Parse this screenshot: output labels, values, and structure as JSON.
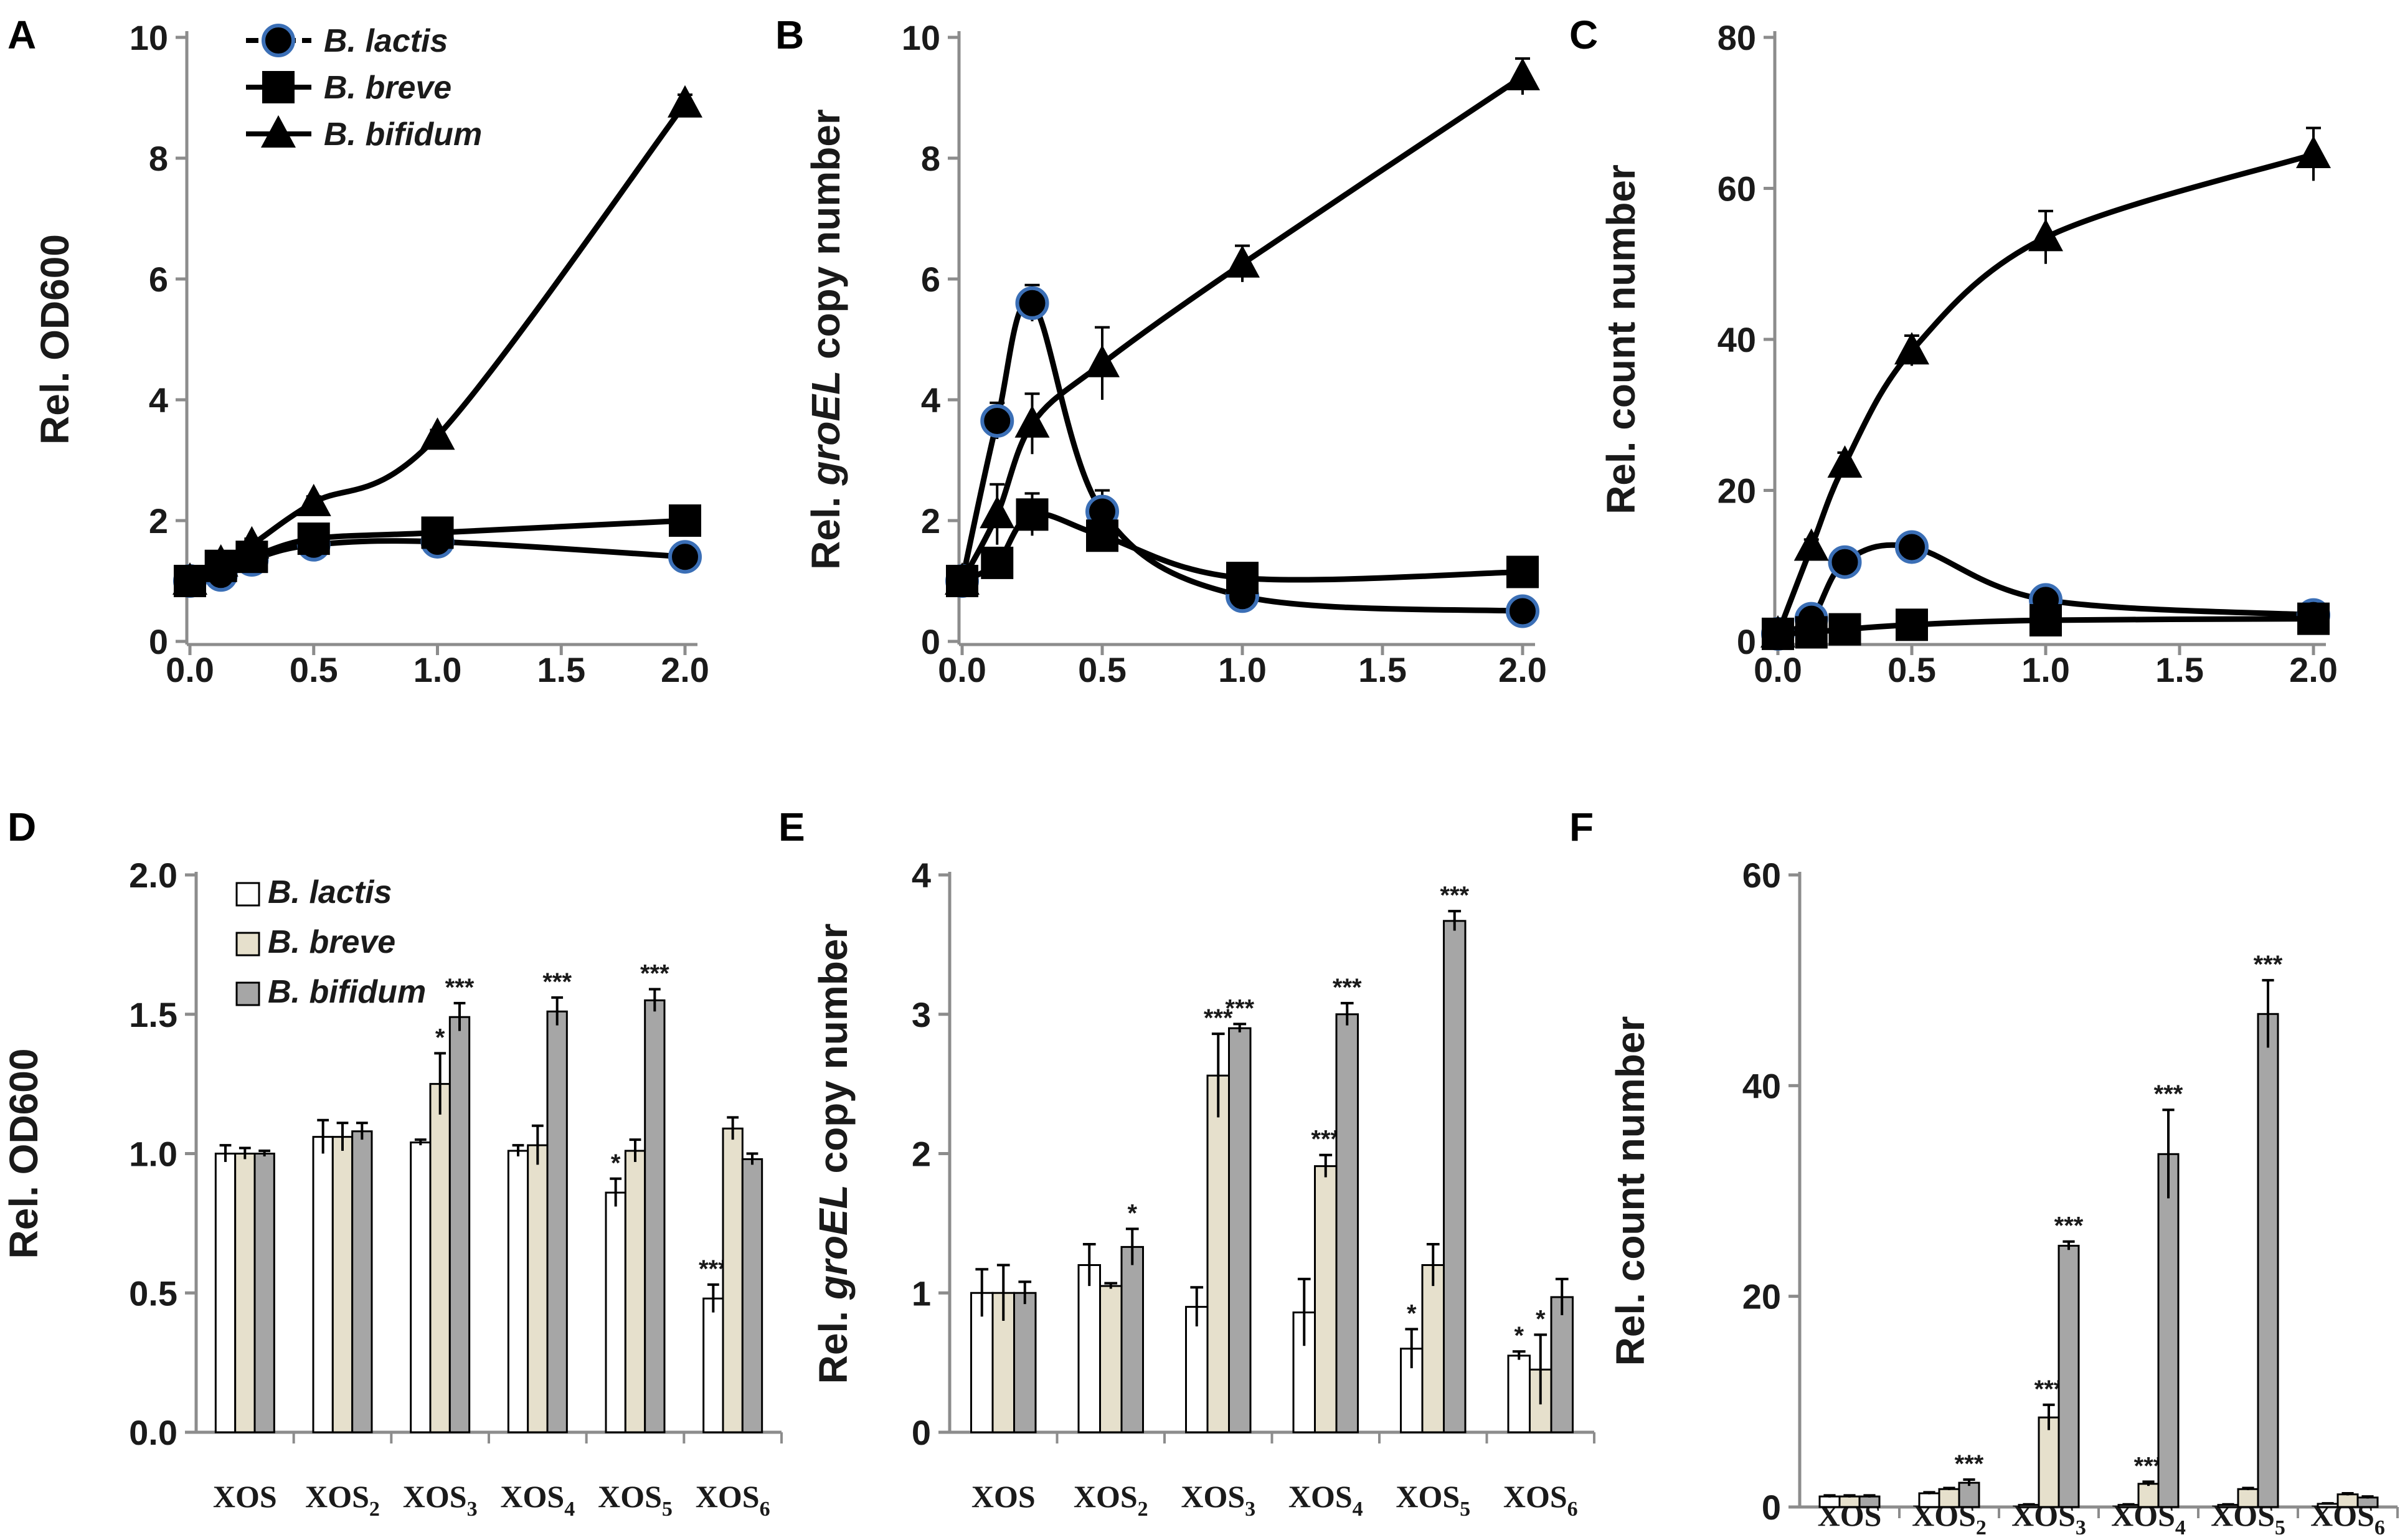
{
  "colors": {
    "axis": "#8c8c8c",
    "line": "#000000",
    "marker_fill": "#000000",
    "circle_stroke": "#3b6fb6",
    "bar_lactis": "#ffffff",
    "bar_breve": "#e6e0cc",
    "bar_bifidum": "#a6a6a6"
  },
  "legend_top": [
    {
      "label": "B. lactis",
      "marker": "circle"
    },
    {
      "label": "B. breve",
      "marker": "square"
    },
    {
      "label": "B. bifidum",
      "marker": "triangle"
    }
  ],
  "legend_bottom": [
    {
      "label": "B. lactis",
      "fill": "bar_lactis"
    },
    {
      "label": "B. breve",
      "fill": "bar_breve"
    },
    {
      "label": "B. bifidum",
      "fill": "bar_bifidum"
    }
  ],
  "chart_data": [
    {
      "panel": "A",
      "type": "line",
      "title": "",
      "xlabel": "",
      "ylabel": "Rel. OD600",
      "xlim": [
        0,
        2.0
      ],
      "ylim": [
        0,
        10
      ],
      "xticks": [
        "0.0",
        "0.5",
        "1.0",
        "1.5",
        "2.0"
      ],
      "yticks": [
        "0",
        "2",
        "4",
        "6",
        "8",
        "10"
      ],
      "x": [
        0,
        0.125,
        0.25,
        0.5,
        1.0,
        2.0
      ],
      "series": [
        {
          "name": "B. lactis",
          "marker": "circle",
          "values": [
            1.0,
            1.1,
            1.35,
            1.6,
            1.65,
            1.4
          ],
          "errors": [
            0.05,
            0.05,
            0.05,
            0.05,
            0.05,
            0.05
          ]
        },
        {
          "name": "B. breve",
          "marker": "square",
          "values": [
            1.0,
            1.25,
            1.4,
            1.7,
            1.8,
            2.0
          ],
          "errors": [
            0.05,
            0.05,
            0.05,
            0.05,
            0.05,
            0.05
          ]
        },
        {
          "name": "B. bifidum",
          "marker": "triangle",
          "values": [
            1.0,
            1.3,
            1.6,
            2.3,
            3.4,
            8.9
          ],
          "errors": [
            0.05,
            0.05,
            0.1,
            0.1,
            0.1,
            0.15
          ]
        }
      ]
    },
    {
      "panel": "B",
      "type": "line",
      "title": "",
      "xlabel": "",
      "ylabel": "Rel. groEL copy number",
      "ylabel_parts": [
        "Rel. ",
        "groEL",
        " copy number"
      ],
      "xlim": [
        0,
        2.0
      ],
      "ylim": [
        0,
        10
      ],
      "xticks": [
        "0.0",
        "0.5",
        "1.0",
        "1.5",
        "2.0"
      ],
      "yticks": [
        "0",
        "2",
        "4",
        "6",
        "8",
        "10"
      ],
      "x": [
        0,
        0.125,
        0.25,
        0.5,
        1.0,
        2.0
      ],
      "series": [
        {
          "name": "B. lactis",
          "marker": "circle",
          "values": [
            1.0,
            3.65,
            5.6,
            2.15,
            0.75,
            0.5
          ],
          "errors": [
            0.05,
            0.3,
            0.3,
            0.35,
            0.2,
            0.05
          ]
        },
        {
          "name": "B. breve",
          "marker": "square",
          "values": [
            1.0,
            1.3,
            2.1,
            1.75,
            1.05,
            1.15
          ],
          "errors": [
            0.05,
            0.2,
            0.35,
            0.2,
            0.1,
            0.1
          ]
        },
        {
          "name": "B. bifidum",
          "marker": "triangle",
          "values": [
            1.0,
            2.1,
            3.6,
            4.6,
            6.25,
            9.35
          ],
          "errors": [
            0.05,
            0.5,
            0.5,
            0.6,
            0.3,
            0.3
          ]
        }
      ]
    },
    {
      "panel": "C",
      "type": "line",
      "title": "",
      "xlabel": "",
      "ylabel": "Rel. count number",
      "xlim": [
        0,
        2.0
      ],
      "ylim": [
        0,
        80
      ],
      "xticks": [
        "0.0",
        "0.5",
        "1.0",
        "1.5",
        "2.0"
      ],
      "yticks": [
        "0",
        "20",
        "40",
        "60",
        "80"
      ],
      "x": [
        0,
        0.125,
        0.25,
        0.5,
        1.0,
        2.0
      ],
      "series": [
        {
          "name": "B. lactis",
          "marker": "circle",
          "values": [
            1.0,
            3.0,
            10.5,
            12.5,
            5.5,
            3.5
          ],
          "errors": [
            0.2,
            0.5,
            0.8,
            0.8,
            0.6,
            0.4
          ]
        },
        {
          "name": "B. breve",
          "marker": "square",
          "values": [
            1.0,
            1.2,
            1.6,
            2.2,
            2.8,
            3.0
          ],
          "errors": [
            0.1,
            0.1,
            0.2,
            0.2,
            0.2,
            0.2
          ]
        },
        {
          "name": "B. bifidum",
          "marker": "triangle",
          "values": [
            1.0,
            12.5,
            23.5,
            38.5,
            53.5,
            64.5
          ],
          "errors": [
            0.2,
            1.0,
            1.5,
            2.0,
            3.5,
            3.5
          ]
        }
      ]
    },
    {
      "panel": "D",
      "type": "bar",
      "title": "",
      "xlabel": "",
      "ylabel": "Rel. OD600",
      "ylim": [
        0,
        2.0
      ],
      "yticks": [
        "0.0",
        "0.5",
        "1.0",
        "1.5",
        "2.0"
      ],
      "categories": [
        {
          "base": "XOS",
          "sub": ""
        },
        {
          "base": "XOS",
          "sub": "2"
        },
        {
          "base": "XOS",
          "sub": "3"
        },
        {
          "base": "XOS",
          "sub": "4"
        },
        {
          "base": "XOS",
          "sub": "5"
        },
        {
          "base": "XOS",
          "sub": "6"
        }
      ],
      "series": [
        {
          "name": "B. lactis",
          "fill": "bar_lactis",
          "values": [
            1.0,
            1.06,
            1.04,
            1.01,
            0.86,
            0.48
          ],
          "errors": [
            0.03,
            0.06,
            0.01,
            0.02,
            0.05,
            0.05
          ],
          "sig": [
            "",
            "",
            "",
            "",
            "*",
            "***"
          ]
        },
        {
          "name": "B. breve",
          "fill": "bar_breve",
          "values": [
            1.0,
            1.06,
            1.25,
            1.03,
            1.01,
            1.09
          ],
          "errors": [
            0.02,
            0.05,
            0.11,
            0.07,
            0.04,
            0.04
          ],
          "sig": [
            "",
            "",
            "*",
            "",
            "",
            ""
          ]
        },
        {
          "name": "B. bifidum",
          "fill": "bar_bifidum",
          "values": [
            1.0,
            1.08,
            1.49,
            1.51,
            1.55,
            0.98
          ],
          "errors": [
            0.01,
            0.03,
            0.05,
            0.05,
            0.04,
            0.02
          ],
          "sig": [
            "",
            "",
            "***",
            "***",
            "***",
            ""
          ]
        }
      ]
    },
    {
      "panel": "E",
      "type": "bar",
      "title": "",
      "xlabel": "",
      "ylabel": "Rel. groEL copy number",
      "ylabel_parts": [
        "Rel. ",
        "groEL",
        " copy number"
      ],
      "ylim": [
        0,
        4
      ],
      "yticks": [
        "0",
        "1",
        "2",
        "3",
        "4"
      ],
      "categories": [
        {
          "base": "XOS",
          "sub": ""
        },
        {
          "base": "XOS",
          "sub": "2"
        },
        {
          "base": "XOS",
          "sub": "3"
        },
        {
          "base": "XOS",
          "sub": "4"
        },
        {
          "base": "XOS",
          "sub": "5"
        },
        {
          "base": "XOS",
          "sub": "6"
        }
      ],
      "series": [
        {
          "name": "B. lactis",
          "fill": "bar_lactis",
          "values": [
            1.0,
            1.2,
            0.9,
            0.86,
            0.6,
            0.55
          ],
          "errors": [
            0.17,
            0.15,
            0.14,
            0.24,
            0.14,
            0.03
          ],
          "sig": [
            "",
            "",
            "",
            "",
            "*",
            "*"
          ]
        },
        {
          "name": "B. breve",
          "fill": "bar_breve",
          "values": [
            1.0,
            1.05,
            2.56,
            1.91,
            1.2,
            0.45
          ],
          "errors": [
            0.2,
            0.02,
            0.3,
            0.08,
            0.15,
            0.25
          ],
          "sig": [
            "",
            "",
            "***",
            "***",
            "",
            "*"
          ]
        },
        {
          "name": "B. bifidum",
          "fill": "bar_bifidum",
          "values": [
            1.0,
            1.33,
            2.9,
            3.0,
            3.67,
            0.97
          ],
          "errors": [
            0.08,
            0.13,
            0.03,
            0.08,
            0.07,
            0.13
          ],
          "sig": [
            "",
            "*",
            "***",
            "***",
            "***",
            ""
          ]
        }
      ]
    },
    {
      "panel": "F",
      "type": "bar",
      "title": "",
      "xlabel": "",
      "ylabel": "Rel. count number",
      "ylim": [
        0,
        60
      ],
      "yticks": [
        "0",
        "20",
        "40",
        "60"
      ],
      "categories": [
        {
          "base": "XOS",
          "sub": ""
        },
        {
          "base": "XOS",
          "sub": "2"
        },
        {
          "base": "XOS",
          "sub": "3"
        },
        {
          "base": "XOS",
          "sub": "4"
        },
        {
          "base": "XOS",
          "sub": "5"
        },
        {
          "base": "XOS",
          "sub": "6"
        }
      ],
      "series": [
        {
          "name": "B. lactis",
          "fill": "bar_lactis",
          "values": [
            1.0,
            1.3,
            0.2,
            0.2,
            0.2,
            0.3
          ],
          "errors": [
            0.1,
            0.1,
            0.05,
            0.05,
            0.05,
            0.05
          ],
          "sig": [
            "",
            "",
            "",
            "",
            "",
            ""
          ]
        },
        {
          "name": "B. breve",
          "fill": "bar_breve",
          "values": [
            1.0,
            1.7,
            8.5,
            2.2,
            1.7,
            1.2
          ],
          "errors": [
            0.1,
            0.1,
            1.2,
            0.2,
            0.1,
            0.1
          ],
          "sig": [
            "",
            "",
            "***",
            "***",
            "",
            ""
          ]
        },
        {
          "name": "B. bifidum",
          "fill": "bar_bifidum",
          "values": [
            1.0,
            2.3,
            24.8,
            33.5,
            46.8,
            0.9
          ],
          "errors": [
            0.1,
            0.3,
            0.4,
            4.2,
            3.2,
            0.1
          ],
          "sig": [
            "",
            "***",
            "***",
            "***",
            "***",
            ""
          ]
        }
      ]
    }
  ]
}
